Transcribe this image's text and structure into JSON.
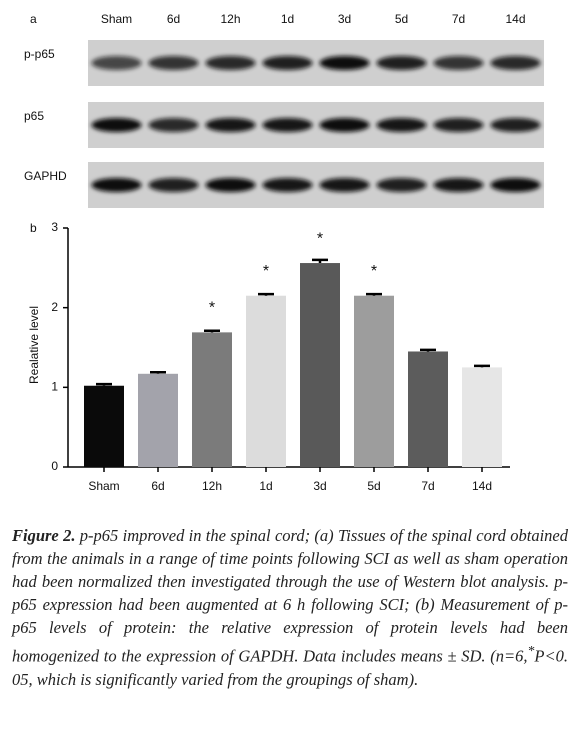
{
  "panel_a": {
    "label": "a",
    "lanes": [
      "Sham",
      "6d",
      "12h",
      "1d",
      "3d",
      "5d",
      "7d",
      "14d"
    ],
    "rows": [
      "p-p65",
      "p65",
      "GAPHD"
    ]
  },
  "chart_data": {
    "type": "bar",
    "panel_label": "b",
    "y_label": "Realative level",
    "categories": [
      "Sham",
      "6d",
      "12h",
      "1d",
      "3d",
      "5d",
      "7d",
      "14d"
    ],
    "values": [
      1.02,
      1.17,
      1.69,
      2.15,
      2.56,
      2.15,
      1.45,
      1.25
    ],
    "errors": [
      0.02,
      0.02,
      0.02,
      0.02,
      0.04,
      0.02,
      0.02,
      0.02
    ],
    "colors": [
      "#0a0a0a",
      "#a3a3ab",
      "#7b7b7b",
      "#dcdcdc",
      "#595959",
      "#9d9d9d",
      "#5c5c5c",
      "#e6e6e6"
    ],
    "markers": [
      null,
      null,
      "*",
      "*",
      "*",
      "*",
      null,
      null
    ],
    "ylim": [
      0,
      3
    ],
    "yticks": [
      0,
      1,
      2,
      3
    ]
  },
  "caption": {
    "label": "Figure 2.",
    "text": " p-p65 improved in the spinal cord; (a) Tissues of the spinal cord obtained from the animals in a range of time points following SCI as well as sham operation had been normalized then investigated through the use of Western blot analysis. p-p65 expression had been augmented at 6 h following SCI; (b) Measurement of p-p65 levels of protein: the relative expression of protein levels had been homogenized to the expression of GAPDH. Data includes means ± SD. (n=6,",
    "superscript": "*",
    "text_after": "P<0. 05, which is significantly varied from the groupings of sham)."
  }
}
